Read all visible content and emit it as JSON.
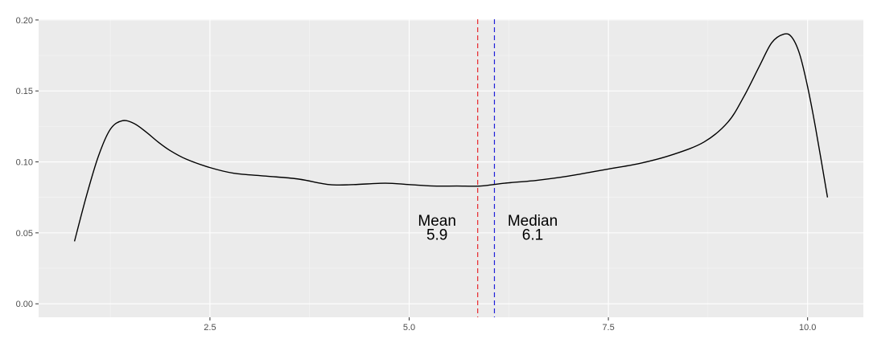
{
  "chart_data": {
    "type": "line",
    "title": "",
    "xlabel": "",
    "ylabel": "",
    "xlim": [
      0.35,
      10.7
    ],
    "ylim": [
      -0.0095,
      0.2005
    ],
    "grid": true,
    "x_ticks": [
      2.5,
      5.0,
      7.5,
      10.0
    ],
    "x_tick_labels": [
      "2.5",
      "5.0",
      "7.5",
      "10.0"
    ],
    "y_ticks": [
      0.0,
      0.05,
      0.1,
      0.15,
      0.2
    ],
    "y_tick_labels": [
      "0.00",
      "0.05",
      "0.10",
      "0.15",
      "0.20"
    ],
    "series": [
      {
        "x": [
          0.8,
          0.95,
          1.1,
          1.25,
          1.4,
          1.55,
          1.7,
          1.85,
          2.0,
          2.2,
          2.5,
          2.8,
          3.2,
          3.6,
          4.0,
          4.3,
          4.7,
          5.0,
          5.3,
          5.6,
          5.9,
          6.2,
          6.6,
          7.0,
          7.5,
          7.9,
          8.3,
          8.7,
          9.0,
          9.2,
          9.4,
          9.55,
          9.7,
          9.8,
          9.9,
          10.0,
          10.1,
          10.25
        ],
        "y": [
          0.044,
          0.076,
          0.104,
          0.123,
          0.129,
          0.127,
          0.121,
          0.114,
          0.108,
          0.102,
          0.096,
          0.092,
          0.09,
          0.088,
          0.084,
          0.084,
          0.085,
          0.084,
          0.083,
          0.083,
          0.083,
          0.085,
          0.087,
          0.09,
          0.095,
          0.099,
          0.105,
          0.114,
          0.128,
          0.146,
          0.168,
          0.184,
          0.19,
          0.188,
          0.176,
          0.153,
          0.124,
          0.075
        ],
        "color": "#000000"
      }
    ],
    "vlines": [
      {
        "x": 5.86,
        "color": "#e8262b",
        "dash": "dashed"
      },
      {
        "x": 6.07,
        "color": "#1f1fd9",
        "dash": "dashed"
      }
    ],
    "annotations": [
      {
        "label": "Mean",
        "value": "5.9",
        "x": 5.35,
        "y_top": 0.059,
        "y_bottom": 0.049
      },
      {
        "label": "Median",
        "value": "6.1",
        "x": 6.55,
        "y_top": 0.059,
        "y_bottom": 0.049
      }
    ],
    "colors": {
      "panel_background": "#ebebeb",
      "grid_major": "#ffffff",
      "grid_minor": "#f5f5f5",
      "tick_color": "#333333",
      "tick_label_color": "#4d4d4d",
      "line": "#000000"
    }
  }
}
